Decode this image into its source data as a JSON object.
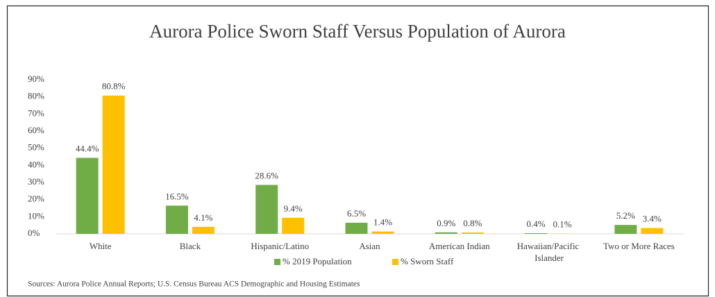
{
  "chart_data": {
    "type": "bar",
    "title": "Aurora Police Sworn Staff Versus Population of Aurora",
    "source": "Sources: Aurora Police Annual Reports; U.S. Census Bureau ACS Demographic and Housing Estimates",
    "categories": [
      "White",
      "Black",
      "Hispanic/Latino",
      "Asian",
      "American Indian",
      "Hawaiian/Pacific Islander",
      "Two or More Races"
    ],
    "series": [
      {
        "name": "% 2019 Population",
        "color": "#70ad47",
        "values": [
          44.4,
          16.5,
          28.6,
          6.5,
          0.9,
          0.4,
          5.2
        ],
        "value_labels": [
          "44.4%",
          "16.5%",
          "28.6%",
          "6.5%",
          "0.9%",
          "0.4%",
          "5.2%"
        ]
      },
      {
        "name": "% Sworn Staff",
        "color": "#ffc000",
        "values": [
          80.8,
          4.1,
          9.4,
          1.4,
          0.8,
          0.1,
          3.4
        ],
        "value_labels": [
          "80.8%",
          "4.1%",
          "9.4%",
          "1.4%",
          "0.8%",
          "0.1%",
          "3.4%"
        ]
      }
    ],
    "ylim": [
      0,
      90
    ],
    "yticks": [
      {
        "value": 0,
        "label": "0%"
      },
      {
        "value": 10,
        "label": "10%"
      },
      {
        "value": 20,
        "label": "20%"
      },
      {
        "value": 30,
        "label": "30%"
      },
      {
        "value": 40,
        "label": "40%"
      },
      {
        "value": 50,
        "label": "50%"
      },
      {
        "value": 60,
        "label": "60%"
      },
      {
        "value": 70,
        "label": "70%"
      },
      {
        "value": 80,
        "label": "80%"
      },
      {
        "value": 90,
        "label": "90%"
      }
    ],
    "grid": false,
    "legend": "bottom"
  }
}
